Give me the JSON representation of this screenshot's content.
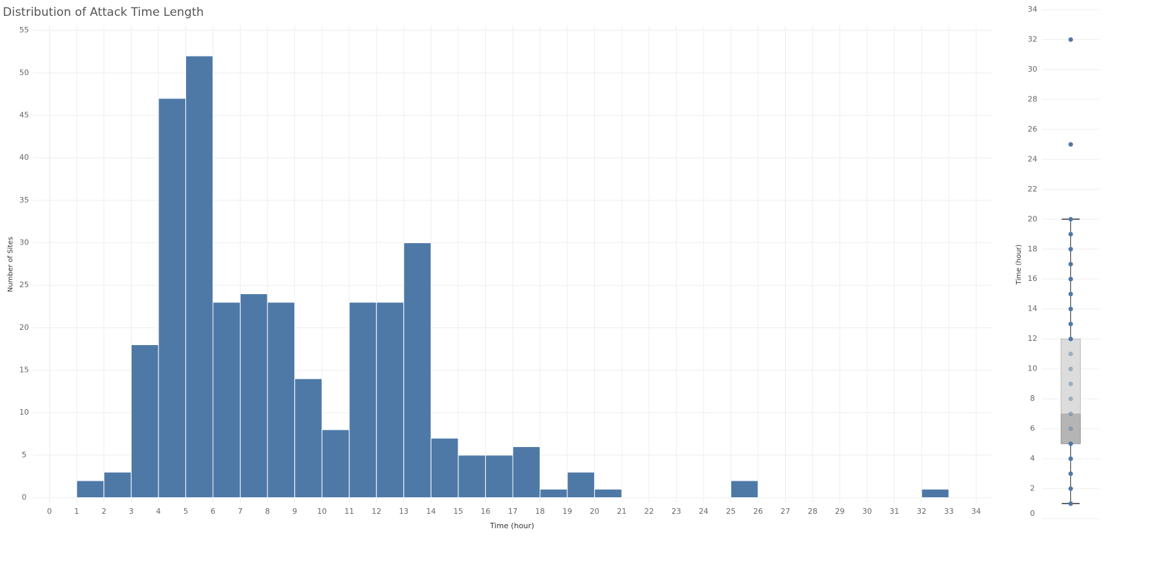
{
  "chart_data": [
    {
      "type": "histogram",
      "title": "Distribution of Attack Time Length",
      "xlabel": "Time (hour)",
      "ylabel": "Number of Sites",
      "bins": [
        1,
        2,
        3,
        4,
        5,
        6,
        7,
        8,
        9,
        10,
        11,
        12,
        13,
        14,
        15,
        16,
        17,
        18,
        19,
        20,
        21,
        22,
        23,
        24,
        25,
        26,
        27,
        28,
        29,
        30,
        31,
        32,
        33
      ],
      "values": [
        2,
        3,
        18,
        47,
        52,
        23,
        24,
        23,
        14,
        8,
        23,
        23,
        30,
        7,
        5,
        5,
        6,
        1,
        3,
        1,
        0,
        0,
        0,
        0,
        2,
        0,
        0,
        0,
        0,
        0,
        0,
        1
      ],
      "color": "#4e79a7",
      "grid": true,
      "xlim": [
        -0.6,
        34.6
      ],
      "xticks": [
        0,
        1,
        2,
        3,
        4,
        5,
        6,
        7,
        8,
        9,
        10,
        11,
        12,
        13,
        14,
        15,
        16,
        17,
        18,
        19,
        20,
        21,
        22,
        23,
        24,
        25,
        26,
        27,
        28,
        29,
        30,
        31,
        32,
        33,
        34
      ],
      "ylim": [
        -0.6,
        55.5
      ],
      "yticks": [
        0,
        5,
        10,
        15,
        20,
        25,
        30,
        35,
        40,
        45,
        50,
        55
      ]
    },
    {
      "type": "box",
      "ylabel": "Time (hour)",
      "color": "#4e79a7",
      "values": [
        1,
        2,
        3,
        4,
        5,
        6,
        7,
        8,
        9,
        10,
        11,
        12,
        13,
        14,
        15,
        16,
        17,
        18,
        19,
        20,
        25,
        32
      ],
      "whisker_low": 1,
      "q1": 5,
      "median": 7,
      "q3": 12,
      "whisker_high": 20,
      "ylim": [
        0,
        34
      ],
      "yticks": [
        0,
        2,
        4,
        6,
        8,
        10,
        12,
        14,
        16,
        18,
        20,
        22,
        24,
        26,
        28,
        30,
        32,
        34
      ],
      "grid": true
    }
  ]
}
